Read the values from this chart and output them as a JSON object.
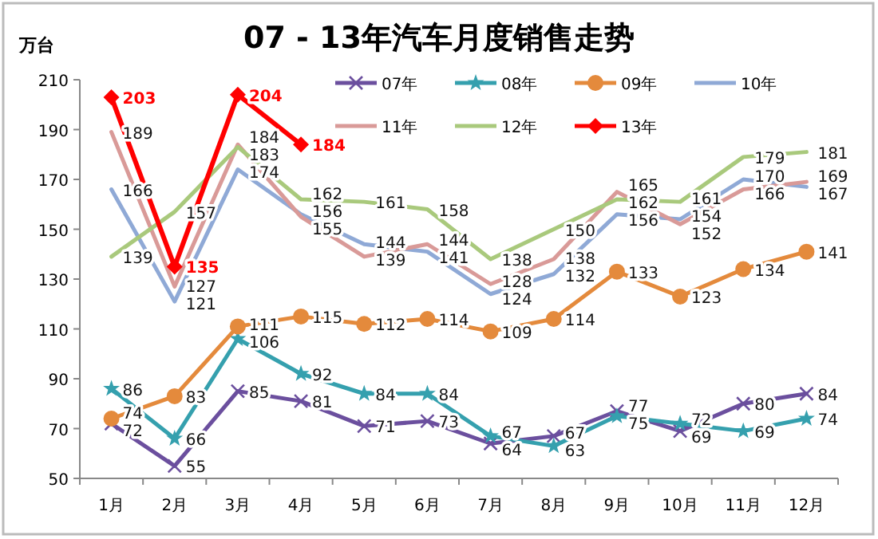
{
  "chart_data": {
    "type": "line",
    "title": "07 - 13年汽车月度销售走势",
    "ylabel": "万台",
    "categories": [
      "1月",
      "2月",
      "3月",
      "4月",
      "5月",
      "6月",
      "7月",
      "8月",
      "9月",
      "10月",
      "11月",
      "12月"
    ],
    "ylim": [
      50,
      210
    ],
    "yticks": [
      50,
      70,
      90,
      110,
      130,
      150,
      170,
      190,
      210
    ],
    "grid": false,
    "legend": "top right",
    "data_labels": true,
    "series": [
      {
        "name": "07年",
        "color": "#6b4f9e",
        "marker": "cross",
        "values": [
          72,
          55,
          85,
          81,
          71,
          73,
          64,
          67,
          77,
          69,
          80,
          84
        ]
      },
      {
        "name": "08年",
        "color": "#35a0ae",
        "marker": "star",
        "values": [
          86,
          66,
          106,
          92,
          84,
          84,
          67,
          63,
          75,
          72,
          69,
          74
        ]
      },
      {
        "name": "09年",
        "color": "#e48a3c",
        "marker": "circle",
        "values": [
          74,
          83,
          111,
          115,
          112,
          114,
          109,
          114,
          133,
          123,
          134,
          141
        ]
      },
      {
        "name": "10年",
        "color": "#8fa9d6",
        "marker": "none",
        "values": [
          166,
          121,
          174,
          156,
          144,
          141,
          124,
          132,
          156,
          154,
          170,
          167
        ]
      },
      {
        "name": "11年",
        "color": "#d99a98",
        "marker": "none",
        "values": [
          189,
          127,
          184,
          155,
          139,
          144,
          128,
          138,
          165,
          152,
          166,
          169
        ]
      },
      {
        "name": "12年",
        "color": "#a9c97c",
        "marker": "none",
        "values": [
          139,
          157,
          183,
          162,
          161,
          158,
          138,
          150,
          162,
          161,
          179,
          181
        ]
      },
      {
        "name": "13年",
        "color": "#ff0000",
        "marker": "diamond",
        "values": [
          203,
          135,
          204,
          184,
          null,
          null,
          null,
          null,
          null,
          null,
          null,
          null
        ]
      }
    ]
  }
}
